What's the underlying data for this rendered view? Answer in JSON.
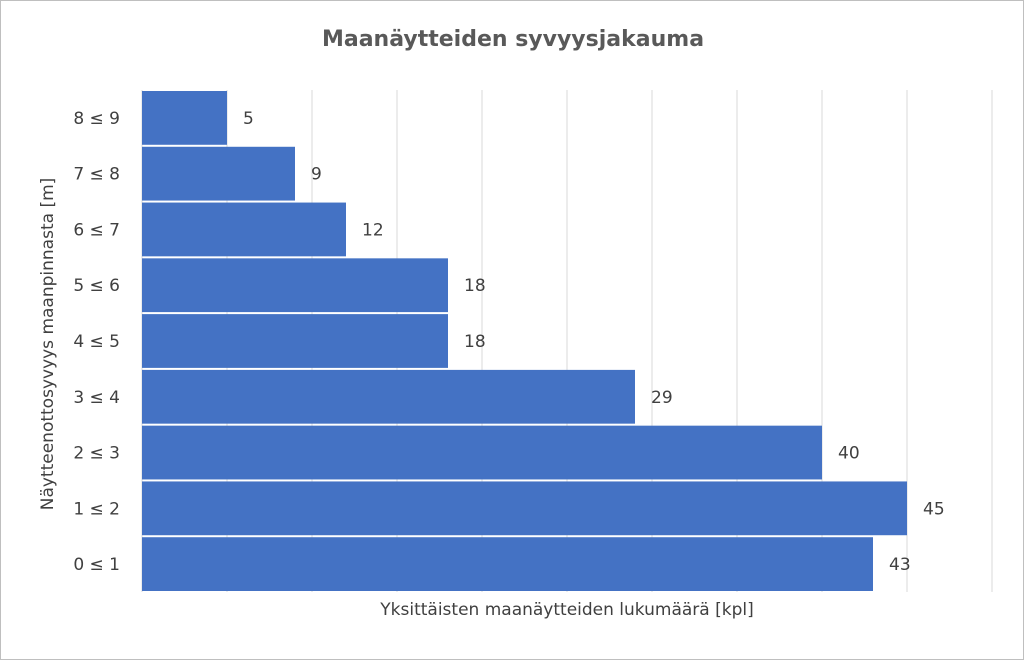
{
  "chart_data": {
    "type": "bar",
    "orientation": "horizontal",
    "title": "Maanäytteiden syvyysjakauma",
    "xlabel": "Yksittäisten maanäytteiden lukumäärä [kpl]",
    "ylabel": "Näytteenottosyvyys maanpinnasta [m]",
    "categories": [
      "0 ≤ 1",
      "1 ≤ 2",
      "2 ≤ 3",
      "3 ≤ 4",
      "4 ≤ 5",
      "5 ≤ 6",
      "6 ≤ 7",
      "7 ≤ 8",
      "8 ≤ 9"
    ],
    "values": [
      43,
      45,
      40,
      29,
      18,
      18,
      12,
      9,
      5
    ],
    "xlim": [
      0,
      50
    ],
    "x_gridline_step": 5,
    "grid": true,
    "x_tick_labels_shown": false,
    "data_labels": true,
    "bar_color": "#4472C4",
    "legend": "none"
  }
}
